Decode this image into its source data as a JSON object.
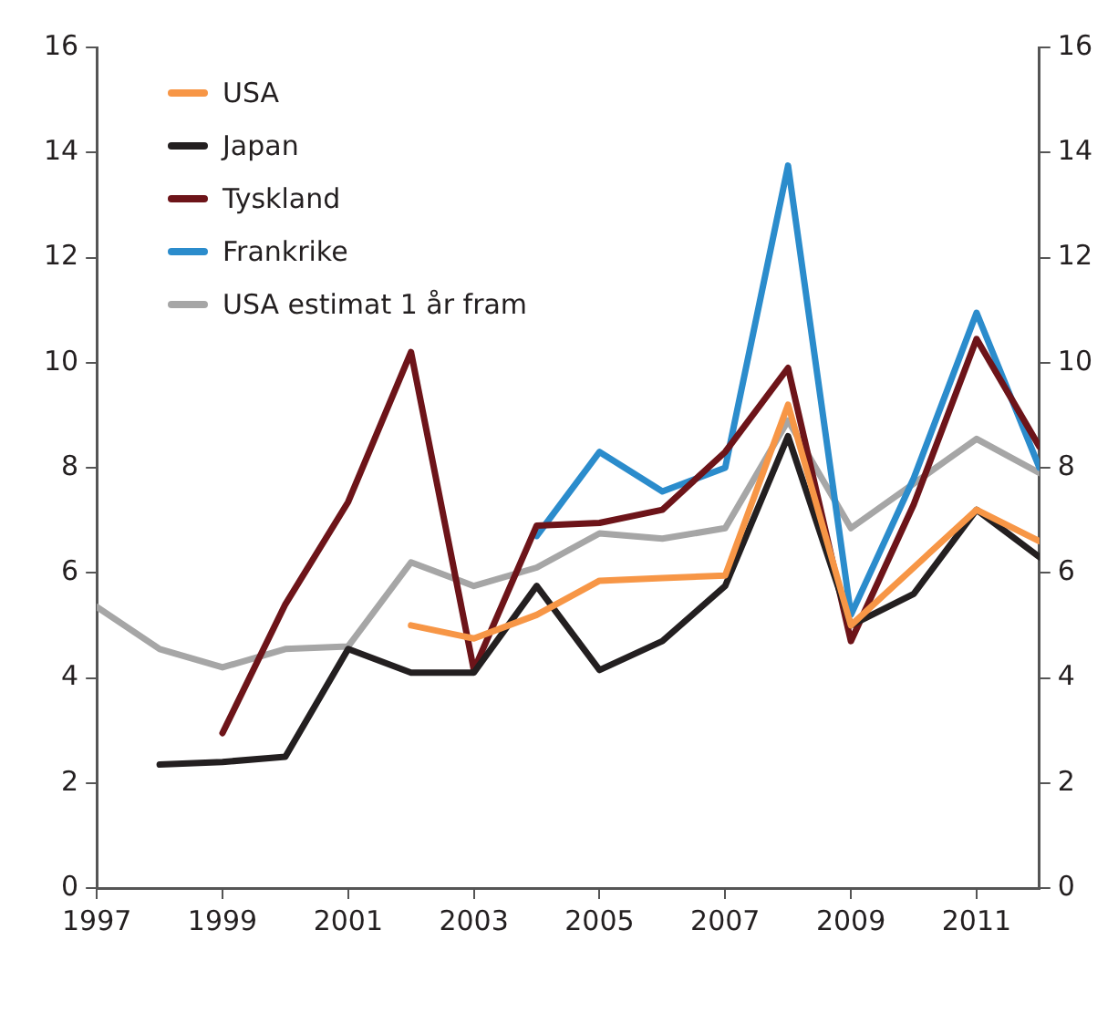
{
  "chart_data": {
    "type": "line",
    "x": [
      1997,
      1998,
      1999,
      2000,
      2001,
      2002,
      2003,
      2004,
      2005,
      2006,
      2007,
      2008,
      2009,
      2010,
      2011,
      2012
    ],
    "series": [
      {
        "name": "USA",
        "color": "#f79646",
        "values": [
          null,
          null,
          null,
          null,
          null,
          5.0,
          4.75,
          5.2,
          5.85,
          5.9,
          5.95,
          9.2,
          5.0,
          6.1,
          7.2,
          6.6
        ]
      },
      {
        "name": "Japan",
        "color": "#231f20",
        "values": [
          null,
          2.35,
          2.4,
          2.5,
          4.55,
          4.1,
          4.1,
          5.75,
          4.15,
          4.7,
          5.75,
          8.6,
          5.0,
          5.6,
          7.2,
          6.3
        ]
      },
      {
        "name": "Tyskland",
        "color": "#6d1419",
        "values": [
          null,
          null,
          2.95,
          5.4,
          7.35,
          10.2,
          4.15,
          6.9,
          6.95,
          7.2,
          8.3,
          9.9,
          4.7,
          7.3,
          10.45,
          8.4
        ]
      },
      {
        "name": "Frankrike",
        "color": "#2b8ccc",
        "values": [
          null,
          null,
          null,
          null,
          null,
          null,
          null,
          6.7,
          8.3,
          7.55,
          8.0,
          13.75,
          5.2,
          7.8,
          10.95,
          8.0
        ]
      },
      {
        "name": "USA estimat 1 år fram",
        "color": "#a6a6a6",
        "values": [
          5.35,
          4.55,
          4.2,
          4.55,
          4.6,
          6.2,
          5.75,
          6.1,
          6.75,
          6.65,
          6.85,
          8.9,
          6.85,
          7.7,
          8.55,
          7.9
        ]
      }
    ],
    "xlim": [
      1997,
      2012
    ],
    "xticks": [
      1997,
      1999,
      2001,
      2003,
      2005,
      2007,
      2009,
      2011
    ],
    "ylim": [
      0,
      16
    ],
    "yticks": [
      0,
      2,
      4,
      6,
      8,
      10,
      12,
      14,
      16
    ],
    "y2lim": [
      0,
      16
    ],
    "y2ticks": [
      0,
      2,
      4,
      6,
      8,
      10,
      12,
      14,
      16
    ],
    "grid": false,
    "legend": "top left",
    "marker": "none",
    "line_style": "solid"
  }
}
